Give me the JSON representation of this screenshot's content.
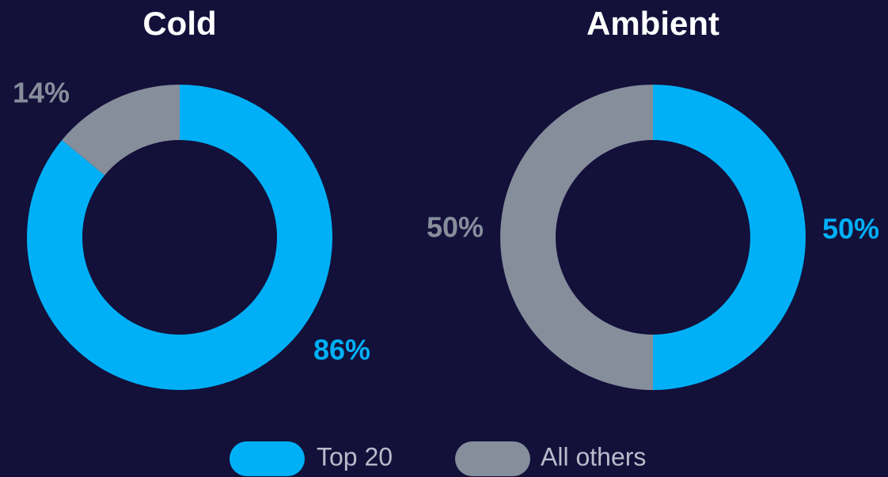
{
  "chart_data": [
    {
      "type": "donut",
      "title": "Cold",
      "categories": [
        "Top 20",
        "All others"
      ],
      "values": [
        86,
        14
      ],
      "value_labels": [
        "86%",
        "14%"
      ],
      "colors": [
        "#00b0f6",
        "#868e9c"
      ]
    },
    {
      "type": "donut",
      "title": "Ambient",
      "categories": [
        "Top 20",
        "All others"
      ],
      "values": [
        50,
        50
      ],
      "value_labels": [
        "50%",
        "50%"
      ],
      "colors": [
        "#00b0f6",
        "#868e9c"
      ]
    }
  ]
}
